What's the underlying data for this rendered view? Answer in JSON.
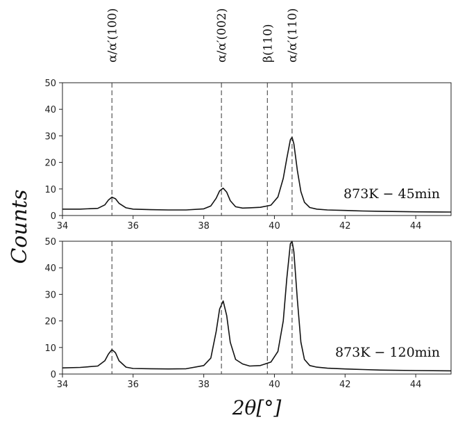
{
  "chart_data": {
    "type": "line",
    "xlabel": "2θ[°]",
    "ylabel": "Counts",
    "xlim": [
      34,
      45
    ],
    "xticks": [
      "34",
      "36",
      "38",
      "40",
      "42",
      "44"
    ],
    "reference_lines": [
      {
        "label": "α/α′(100)",
        "x": 35.4
      },
      {
        "label": "α/α′(002)",
        "x": 38.5
      },
      {
        "label": "β(110)",
        "x": 39.8
      },
      {
        "label": "α/α′(110)",
        "x": 40.5
      }
    ],
    "panels": [
      {
        "annotation": "873K − 45min",
        "ylim": [
          0,
          50
        ],
        "yticks": [
          "0",
          "10",
          "20",
          "30",
          "40",
          "50"
        ],
        "series": [
          {
            "color": "#111111",
            "x": [
              34.0,
              34.5,
              35.0,
              35.2,
              35.3,
              35.4,
              35.5,
              35.6,
              35.8,
              36.0,
              36.5,
              37.0,
              37.5,
              38.0,
              38.2,
              38.35,
              38.45,
              38.55,
              38.65,
              38.75,
              38.9,
              39.1,
              39.3,
              39.6,
              39.9,
              40.1,
              40.25,
              40.35,
              40.45,
              40.5,
              40.55,
              40.65,
              40.75,
              40.85,
              41.0,
              41.2,
              41.5,
              42.0,
              42.5,
              43.0,
              44.0,
              45.0
            ],
            "y": [
              2.4,
              2.4,
              2.7,
              4.0,
              5.8,
              6.9,
              6.3,
              4.6,
              2.9,
              2.4,
              2.2,
              2.1,
              2.1,
              2.5,
              3.6,
              6.5,
              9.3,
              10.3,
              8.8,
              5.6,
              3.3,
              2.8,
              2.9,
              3.1,
              3.9,
              7.0,
              14.0,
              21.5,
              28.5,
              29.5,
              27.0,
              17.0,
              9.0,
              5.0,
              3.0,
              2.4,
              2.1,
              1.9,
              1.7,
              1.6,
              1.4,
              1.3
            ]
          }
        ]
      },
      {
        "annotation": "873K − 120min",
        "ylim": [
          0,
          50
        ],
        "yticks": [
          "0",
          "10",
          "20",
          "30",
          "40",
          "50"
        ],
        "series": [
          {
            "color": "#111111",
            "x": [
              34.0,
              34.5,
              35.0,
              35.2,
              35.3,
              35.4,
              35.5,
              35.6,
              35.8,
              36.0,
              36.5,
              37.0,
              37.5,
              38.0,
              38.2,
              38.35,
              38.45,
              38.55,
              38.65,
              38.75,
              38.9,
              39.1,
              39.3,
              39.6,
              39.9,
              40.1,
              40.25,
              40.35,
              40.45,
              40.5,
              40.55,
              40.65,
              40.75,
              40.85,
              41.0,
              41.2,
              41.5,
              42.0,
              42.5,
              43.0,
              44.0,
              45.0
            ],
            "y": [
              2.3,
              2.5,
              3.0,
              5.0,
              7.5,
              9.2,
              8.0,
              5.0,
              2.6,
              2.1,
              2.0,
              1.9,
              2.0,
              3.2,
              6.0,
              16.0,
              24.5,
              27.5,
              22.0,
              12.0,
              5.5,
              3.8,
              3.0,
              3.2,
              4.5,
              8.5,
              20.0,
              36.0,
              49.0,
              50.0,
              46.0,
              28.0,
              12.0,
              5.5,
              3.2,
              2.6,
              2.2,
              1.9,
              1.7,
              1.5,
              1.3,
              1.2
            ]
          }
        ]
      }
    ]
  }
}
